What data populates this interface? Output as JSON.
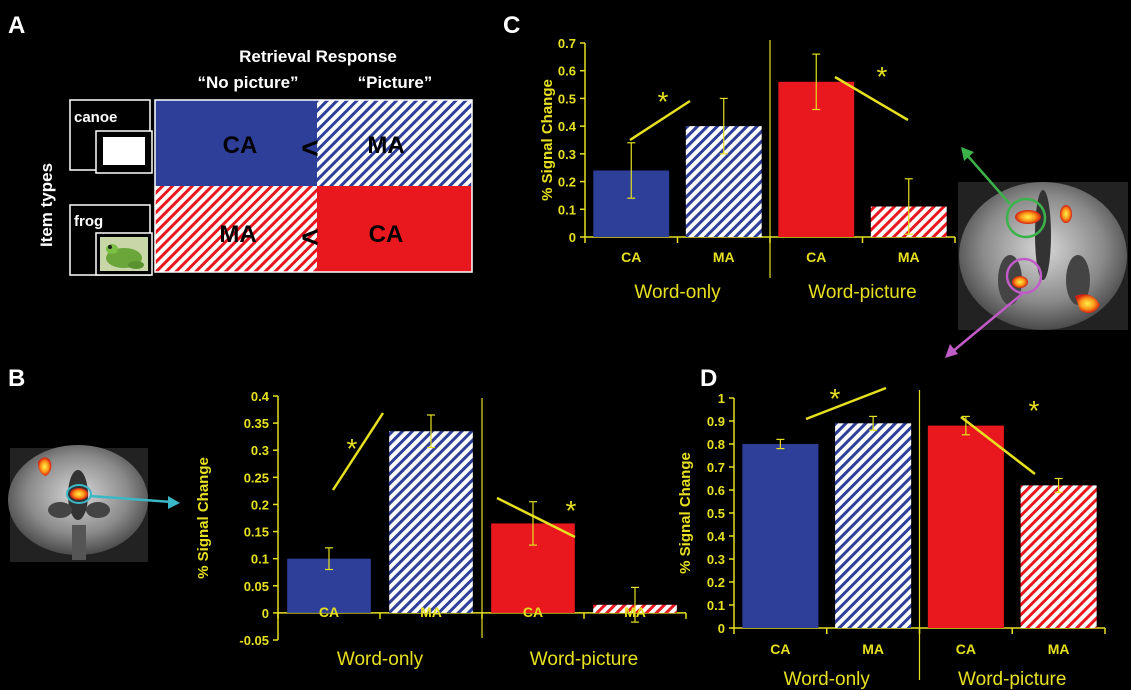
{
  "panel_labels": {
    "a": "A",
    "b": "B",
    "c": "C",
    "d": "D"
  },
  "panel_a": {
    "title": "Retrieval Response",
    "col_no_picture": "“No picture”",
    "col_picture": "“Picture”",
    "row_axis_label": "Item  types",
    "item_word": "canoe",
    "item_picture": "frog",
    "cells": {
      "top_left": "CA",
      "top_right": "MA",
      "bottom_left": "MA",
      "bottom_right": "CA"
    },
    "less_than": "<",
    "colors": {
      "blue": "#2E3F9A",
      "red": "#E8181E",
      "hatch_blue": "#2E3F9A",
      "hatch_red": "#E8181E"
    }
  },
  "chart_data": [
    {
      "panel": "B",
      "type": "bar",
      "ylabel": "% Signal Change",
      "ylim": [
        -0.05,
        0.4
      ],
      "yticks": [
        -0.05,
        0,
        0.05,
        0.1,
        0.15,
        0.2,
        0.25,
        0.3,
        0.35,
        0.4
      ],
      "ytick_labels": [
        "-0.05",
        "0",
        "0.05",
        "0.1",
        "0.15",
        "0.2",
        "0.25",
        "0.3",
        "0.35",
        "0.4"
      ],
      "categories": [
        "CA",
        "MA",
        "CA",
        "MA"
      ],
      "groups": [
        "Word-only",
        "Word-picture"
      ],
      "values": [
        0.1,
        0.335,
        0.165,
        0.015
      ],
      "errors": [
        0.02,
        0.03,
        0.04,
        0.032
      ],
      "styles": [
        "solid-blue",
        "hatch-blue",
        "solid-red",
        "hatch-red"
      ],
      "asterisk": "*"
    },
    {
      "panel": "C",
      "type": "bar",
      "ylabel": "% Signal Change",
      "ylim": [
        0,
        0.7
      ],
      "yticks": [
        0,
        0.1,
        0.2,
        0.3,
        0.4,
        0.5,
        0.6,
        0.7
      ],
      "ytick_labels": [
        "0",
        "0.1",
        "0.2",
        "0.3",
        "0.4",
        "0.5",
        "0.6",
        "0.7"
      ],
      "categories": [
        "CA",
        "MA",
        "CA",
        "MA"
      ],
      "groups": [
        "Word-only",
        "Word-picture"
      ],
      "values": [
        0.24,
        0.4,
        0.56,
        0.11
      ],
      "errors": [
        0.1,
        0.1,
        0.1,
        0.1
      ],
      "styles": [
        "solid-blue",
        "hatch-blue",
        "solid-red",
        "hatch-red"
      ],
      "asterisk": "*"
    },
    {
      "panel": "D",
      "type": "bar",
      "ylabel": "% Signal Change",
      "ylim": [
        0,
        1
      ],
      "yticks": [
        0,
        0.1,
        0.2,
        0.3,
        0.4,
        0.5,
        0.6,
        0.7,
        0.8,
        0.9,
        1
      ],
      "ytick_labels": [
        "0",
        "0.1",
        "0.2",
        "0.3",
        "0.4",
        "0.5",
        "0.6",
        "0.7",
        "0.8",
        "0.9",
        "1"
      ],
      "categories": [
        "CA",
        "MA",
        "CA",
        "MA"
      ],
      "groups": [
        "Word-only",
        "Word-picture"
      ],
      "values": [
        0.8,
        0.89,
        0.88,
        0.62
      ],
      "errors": [
        0.02,
        0.03,
        0.04,
        0.03
      ],
      "styles": [
        "solid-blue",
        "hatch-blue",
        "solid-red",
        "hatch-red"
      ],
      "asterisk": "*"
    }
  ],
  "colors": {
    "axis_text": "#E6E020",
    "axis_line": "#E6E020",
    "bar_blue": "#2E3F9A",
    "bar_red": "#E8181E",
    "group_text": "#E6E020",
    "arrow_green": "#3BB34A",
    "arrow_purple": "#C05BC8",
    "arrow_cyan": "#3BB8C8"
  }
}
